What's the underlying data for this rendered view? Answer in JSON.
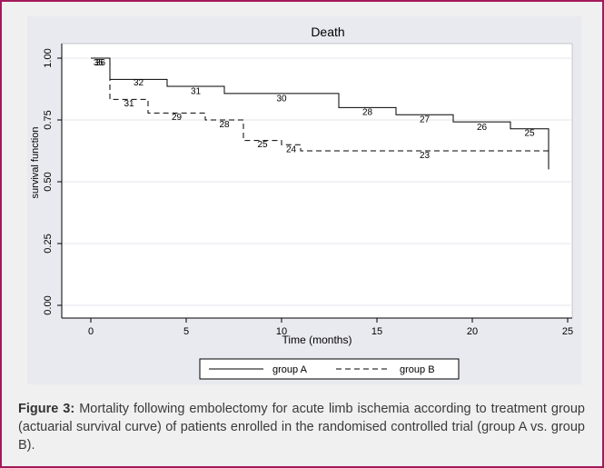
{
  "chart_data": {
    "type": "line",
    "title": "Death",
    "xlabel": "Time (months)",
    "ylabel": "survival function",
    "xlim": [
      0,
      25
    ],
    "ylim": [
      0,
      1
    ],
    "x_ticks": [
      "0",
      "5",
      "10",
      "15",
      "20",
      "25"
    ],
    "y_ticks": [
      "0.00",
      "0.25",
      "0.50",
      "0.75",
      "1.00"
    ],
    "grid": "horizontal",
    "legend": "bottom",
    "series": [
      {
        "name": "group A",
        "style": "solid",
        "steps": [
          [
            0,
            1.0
          ],
          [
            1,
            0.914
          ],
          [
            4,
            0.886
          ],
          [
            7,
            0.857
          ],
          [
            13,
            0.8
          ],
          [
            16,
            0.771
          ],
          [
            19,
            0.742
          ],
          [
            22,
            0.714
          ],
          [
            24,
            0.55
          ]
        ],
        "at_risk": [
          {
            "x": 0.4,
            "y": 0.985,
            "label": "35"
          },
          {
            "x": 2.5,
            "y": 0.905,
            "label": "32"
          },
          {
            "x": 5.5,
            "y": 0.87,
            "label": "31"
          },
          {
            "x": 10,
            "y": 0.84,
            "label": "30"
          },
          {
            "x": 14.5,
            "y": 0.785,
            "label": "28"
          },
          {
            "x": 17.5,
            "y": 0.755,
            "label": "27"
          },
          {
            "x": 20.5,
            "y": 0.725,
            "label": "26"
          },
          {
            "x": 23,
            "y": 0.7,
            "label": "25"
          }
        ]
      },
      {
        "name": "group B",
        "style": "dashed",
        "steps": [
          [
            0,
            1.0
          ],
          [
            1,
            0.833
          ],
          [
            3,
            0.778
          ],
          [
            6,
            0.75
          ],
          [
            8,
            0.667
          ],
          [
            10,
            0.65
          ],
          [
            11,
            0.625
          ],
          [
            24,
            0.625
          ]
        ],
        "at_risk": [
          {
            "x": 0.5,
            "y": 0.985,
            "label": "36"
          },
          {
            "x": 2,
            "y": 0.82,
            "label": "31"
          },
          {
            "x": 4.5,
            "y": 0.765,
            "label": "29"
          },
          {
            "x": 7,
            "y": 0.735,
            "label": "28"
          },
          {
            "x": 9,
            "y": 0.655,
            "label": "25"
          },
          {
            "x": 10.5,
            "y": 0.635,
            "label": "24"
          },
          {
            "x": 17.5,
            "y": 0.61,
            "label": "23"
          }
        ]
      }
    ],
    "colors": {
      "line": "#000000",
      "grid": "#ffffff",
      "plot_bg": "#ffffff",
      "panel_bg": "#e9e9f0"
    }
  },
  "caption": {
    "label": "Figure 3:",
    "text": " Mortality following embolectomy for acute limb ischemia according to treatment group (actuarial survival curve) of patients enrolled in the randomised controlled trial (group A vs. group B)."
  },
  "colors": {
    "frame_border": "#a3195b",
    "frame_bg": "#f0f0f0",
    "caption_text": "#3a3a3a"
  }
}
